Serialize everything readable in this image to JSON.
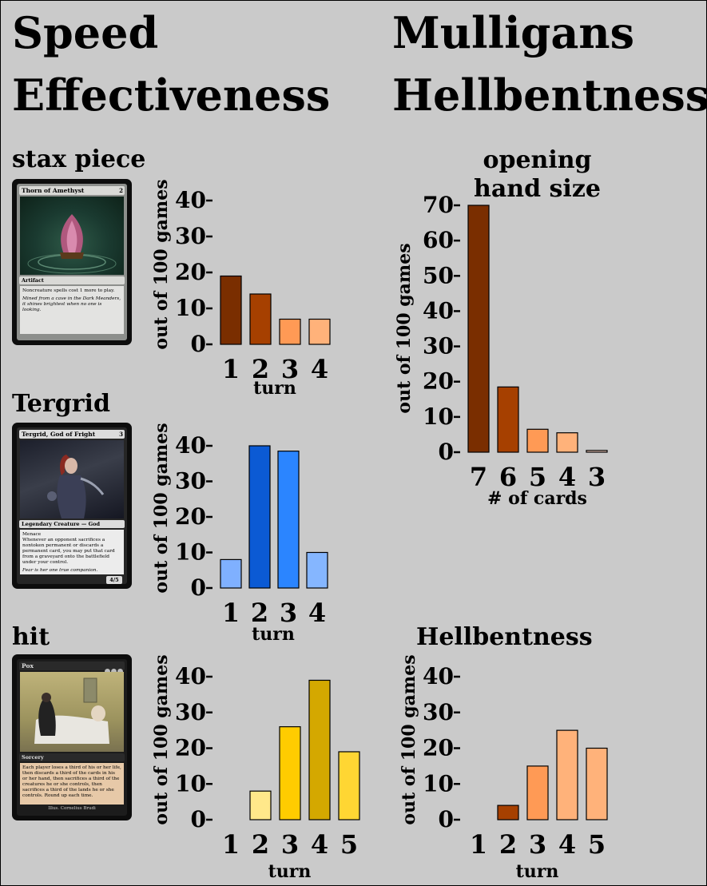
{
  "headings": {
    "left_line1": "Speed",
    "left_line2": "Effectiveness",
    "right_line1": "Mulligans",
    "right_line2": "Hellbentness"
  },
  "sections": {
    "stax": "stax piece",
    "tergrid": "Tergrid",
    "hit": "hit",
    "hellbentness": "Hellbentness"
  },
  "cards": {
    "thorn": {
      "name": "Thorn of Amethyst",
      "mana": "2",
      "type": "Artifact",
      "rules": "Noncreature spells cost 1 more to play.",
      "flavor": "Mined from a cave in the Dark Meanders, it shines brightest when no one is looking."
    },
    "tergrid": {
      "name": "Tergrid, God of Fright",
      "mana": "3",
      "type": "Legendary Creature — God",
      "rules_1": "Menace",
      "rules_2": "Whenever an opponent sacrifices a nontoken permanent or discards a permanent card, you may put that card from a graveyard onto the battlefield under your control.",
      "flavor": "Fear is her one true companion.",
      "pt": "4/5"
    },
    "pox": {
      "name": "Pox",
      "mana": "",
      "type": "Sorcery",
      "rules": "Each player loses a third of his or her life, then discards a third of the cards in his or her hand, then sacrifices a third of the creatures he or she controls, then sacrifices a third of the lands he or she controls. Round up each time.",
      "artist": "Illus. Cornelius Brudi"
    }
  },
  "chart_data": [
    {
      "id": "stax",
      "type": "bar",
      "title": "",
      "xlabel": "turn",
      "ylabel": "out of 100 games",
      "categories": [
        "1",
        "2",
        "3",
        "4"
      ],
      "values": [
        19,
        14,
        7,
        7
      ],
      "ylim": [
        0,
        40
      ],
      "yticks": [
        "0",
        "10",
        "20",
        "30",
        "40"
      ],
      "colors": [
        "#7a2e00",
        "#a64000",
        "#ff9a55",
        "#ffb27a"
      ]
    },
    {
      "id": "tergrid",
      "type": "bar",
      "title": "",
      "xlabel": "turn",
      "ylabel": "out of 100 games",
      "categories": [
        "1",
        "2",
        "3",
        "4"
      ],
      "values": [
        8,
        40,
        38.5,
        10
      ],
      "ylim": [
        0,
        40
      ],
      "yticks": [
        "0",
        "10",
        "20",
        "30",
        "40"
      ],
      "colors": [
        "#7fb0ff",
        "#0b5ad4",
        "#2b85ff",
        "#85b6ff"
      ]
    },
    {
      "id": "hit",
      "type": "bar",
      "title": "",
      "xlabel": "turn",
      "ylabel": "out of 100 games",
      "categories": [
        "1",
        "2",
        "3",
        "4",
        "5"
      ],
      "values": [
        0,
        8,
        26,
        39,
        19
      ],
      "ylim": [
        0,
        40
      ],
      "yticks": [
        "0",
        "10",
        "20",
        "30",
        "40"
      ],
      "colors": [
        "#ffe88a",
        "#ffe88a",
        "#ffcc00",
        "#d4a800",
        "#ffd633"
      ]
    },
    {
      "id": "mulligans",
      "type": "bar",
      "title": "opening hand size",
      "xlabel": "# of cards",
      "ylabel": "out of 100 games",
      "categories": [
        "7",
        "6",
        "5",
        "4",
        "3"
      ],
      "values": [
        70,
        18.5,
        6.5,
        5.5,
        0.5
      ],
      "ylim": [
        0,
        70
      ],
      "yticks": [
        "0",
        "10",
        "20",
        "30",
        "40",
        "50",
        "60",
        "70"
      ],
      "colors": [
        "#7a2e00",
        "#a64000",
        "#ff9a55",
        "#ffb27a",
        "#ffd8c8"
      ]
    },
    {
      "id": "hellbent",
      "type": "bar",
      "title": "",
      "xlabel": "turn",
      "ylabel": "out of 100 games",
      "categories": [
        "1",
        "2",
        "3",
        "4",
        "5"
      ],
      "values": [
        0,
        4,
        15,
        25,
        20
      ],
      "ylim": [
        0,
        40
      ],
      "yticks": [
        "0",
        "10",
        "20",
        "30",
        "40"
      ],
      "colors": [
        "#a64000",
        "#a64000",
        "#ff9a55",
        "#ffb27a",
        "#ffb27a"
      ]
    }
  ]
}
